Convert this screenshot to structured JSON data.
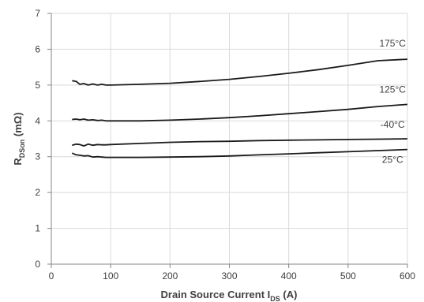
{
  "chart_data": {
    "type": "line",
    "title": "",
    "xlabel": "Drain Source Current I",
    "xlabel_sub": "DS",
    "xlabel_suffix": " (A)",
    "ylabel": "R",
    "ylabel_sub": "DSon",
    "ylabel_suffix": " (mΩ)",
    "xlim": [
      0,
      600
    ],
    "ylim": [
      0,
      7
    ],
    "xticks": [
      0,
      100,
      200,
      300,
      400,
      500,
      600
    ],
    "yticks": [
      0,
      1,
      2,
      3,
      4,
      5,
      6,
      7
    ],
    "grid": true,
    "legend": "none",
    "series": [
      {
        "name": "175°C",
        "x": [
          35,
          42,
          48,
          55,
          62,
          70,
          78,
          85,
          92,
          100,
          150,
          200,
          250,
          300,
          350,
          400,
          450,
          500,
          550,
          600
        ],
        "y": [
          5.12,
          5.1,
          5.02,
          5.04,
          5.0,
          5.03,
          5.0,
          5.02,
          5.0,
          5.0,
          5.02,
          5.05,
          5.1,
          5.16,
          5.24,
          5.33,
          5.43,
          5.55,
          5.68,
          5.72
        ]
      },
      {
        "name": "125°C",
        "x": [
          35,
          42,
          48,
          55,
          62,
          70,
          78,
          85,
          92,
          100,
          150,
          200,
          250,
          300,
          350,
          400,
          450,
          500,
          550,
          600
        ],
        "y": [
          4.04,
          4.05,
          4.03,
          4.05,
          4.02,
          4.03,
          4.01,
          4.02,
          4.0,
          4.0,
          4.0,
          4.02,
          4.05,
          4.09,
          4.14,
          4.2,
          4.26,
          4.32,
          4.4,
          4.46
        ]
      },
      {
        "name": "-40°C",
        "x": [
          35,
          42,
          48,
          55,
          62,
          70,
          78,
          85,
          92,
          100,
          150,
          200,
          250,
          300,
          350,
          400,
          450,
          500,
          550,
          600
        ],
        "y": [
          3.32,
          3.35,
          3.34,
          3.3,
          3.35,
          3.32,
          3.34,
          3.33,
          3.33,
          3.34,
          3.37,
          3.4,
          3.42,
          3.43,
          3.45,
          3.46,
          3.47,
          3.48,
          3.49,
          3.5
        ]
      },
      {
        "name": "25°C",
        "x": [
          35,
          42,
          48,
          55,
          62,
          70,
          78,
          85,
          92,
          100,
          150,
          200,
          250,
          300,
          350,
          400,
          450,
          500,
          550,
          600
        ],
        "y": [
          3.1,
          3.05,
          3.04,
          3.02,
          3.03,
          2.99,
          3.0,
          2.99,
          2.98,
          2.98,
          2.98,
          2.99,
          3.0,
          3.02,
          3.05,
          3.08,
          3.11,
          3.14,
          3.17,
          3.2
        ]
      }
    ]
  }
}
